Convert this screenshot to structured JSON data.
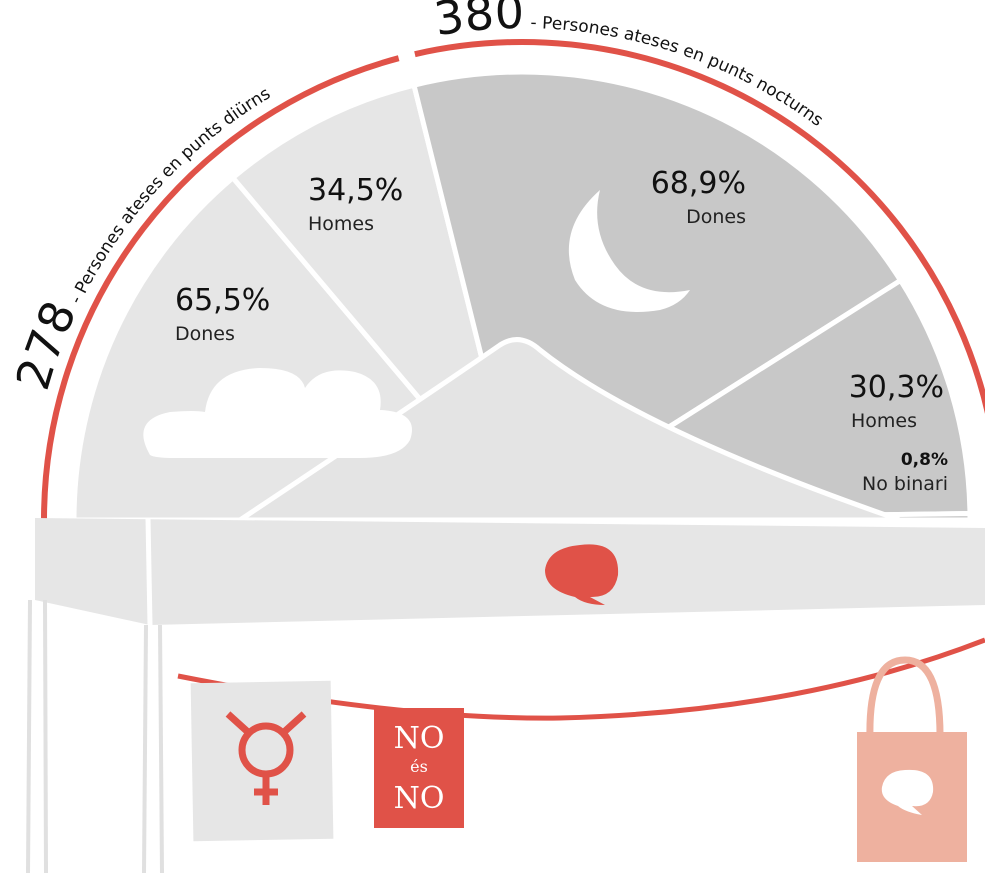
{
  "day": {
    "count": 278,
    "label": "- Persones ateses en punts diürns",
    "segments": [
      {
        "value": 65.5,
        "label": "65,5%",
        "name": "Dones"
      },
      {
        "value": 34.5,
        "label": "34,5%",
        "name": "Homes"
      }
    ]
  },
  "night": {
    "count": 380,
    "label": "- Persones ateses en punts nocturns",
    "segments": [
      {
        "value": 68.9,
        "label": "68,9%",
        "name": "Dones"
      },
      {
        "value": 30.3,
        "label": "30,3%",
        "name": "Homes"
      },
      {
        "value": 0.8,
        "label": "0,8%",
        "name": "No binari"
      }
    ]
  },
  "flag": {
    "top": "NO",
    "middle": "és",
    "bottom": "NO"
  }
}
